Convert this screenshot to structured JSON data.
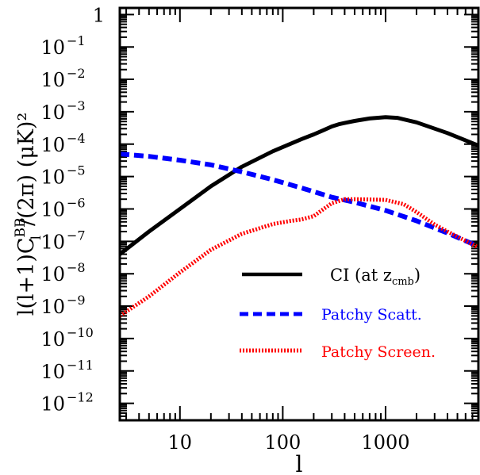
{
  "chart_data": {
    "type": "line",
    "x_scale": "log",
    "y_scale": "log",
    "xlim": [
      2.6,
      8000
    ],
    "ylim": [
      3e-13,
      1.6
    ],
    "xlabel": "l",
    "ylabel_parts": {
      "prefix": "l(l+1)C",
      "sup": "BB",
      "sub": "l",
      "suffix": "/(2π)  (μK)²"
    },
    "x_ticks": [
      {
        "value": 10,
        "label": "10"
      },
      {
        "value": 100,
        "label": "100"
      },
      {
        "value": 1000,
        "label": "1000"
      }
    ],
    "y_ticks": [
      {
        "value": 1,
        "base": "1",
        "exp": ""
      },
      {
        "value": 0.1,
        "base": "10",
        "exp": "−1"
      },
      {
        "value": 0.01,
        "base": "10",
        "exp": "−2"
      },
      {
        "value": 0.001,
        "base": "10",
        "exp": "−3"
      },
      {
        "value": 0.0001,
        "base": "10",
        "exp": "−4"
      },
      {
        "value": 1e-05,
        "base": "10",
        "exp": "−5"
      },
      {
        "value": 1e-06,
        "base": "10",
        "exp": "−6"
      },
      {
        "value": 1e-07,
        "base": "10",
        "exp": "−7"
      },
      {
        "value": 1e-08,
        "base": "10",
        "exp": "−8"
      },
      {
        "value": 1e-09,
        "base": "10",
        "exp": "−9"
      },
      {
        "value": 1e-10,
        "base": "10",
        "exp": "−10"
      },
      {
        "value": 1e-11,
        "base": "10",
        "exp": "−11"
      },
      {
        "value": 1e-12,
        "base": "10",
        "exp": "−12"
      }
    ],
    "legend_position": "center-right",
    "series": [
      {
        "name": "CI (at z_cmb)",
        "legend_main": "CI (at z",
        "legend_sub": "cmb",
        "legend_end": ")",
        "color": "#000000",
        "style": "solid",
        "x": [
          2.6,
          5,
          10,
          20,
          40,
          80,
          150,
          200,
          250,
          300,
          350,
          400,
          500,
          700,
          1000,
          1300,
          2000,
          4000,
          8000
        ],
        "y": [
          4e-08,
          2e-07,
          1e-06,
          5e-06,
          2e-05,
          6e-05,
          0.00014,
          0.0002,
          0.00027,
          0.00035,
          0.00041,
          0.00045,
          0.00052,
          0.00062,
          0.00068,
          0.00065,
          0.00047,
          0.00022,
          9e-05
        ]
      },
      {
        "name": "Patchy Scatt.",
        "color": "#0000ff",
        "style": "dashed",
        "x": [
          2.6,
          5,
          10,
          20,
          40,
          80,
          150,
          300,
          500,
          1000,
          2000,
          4000,
          8000
        ],
        "y": [
          5e-05,
          4.2e-05,
          3.2e-05,
          2.3e-05,
          1.4e-05,
          8e-06,
          4.5e-06,
          2.3e-06,
          1.6e-06,
          9e-07,
          4.3e-07,
          1.8e-07,
          7e-08
        ]
      },
      {
        "name": "Patchy Screen.",
        "color": "#ff0000",
        "style": "dotted",
        "x": [
          2.6,
          5,
          10,
          20,
          40,
          80,
          120,
          150,
          200,
          250,
          300,
          400,
          500,
          700,
          1000,
          1500,
          2000,
          3000,
          4000,
          8000
        ],
        "y": [
          5e-10,
          2e-09,
          1.1e-08,
          5.5e-08,
          1.7e-07,
          3.4e-07,
          4.3e-07,
          4.7e-07,
          6e-07,
          1e-06,
          1.5e-06,
          2e-06,
          2e-06,
          1.95e-06,
          1.9e-06,
          1.4e-06,
          8e-07,
          3.3e-07,
          2e-07,
          6.5e-08
        ]
      }
    ]
  }
}
